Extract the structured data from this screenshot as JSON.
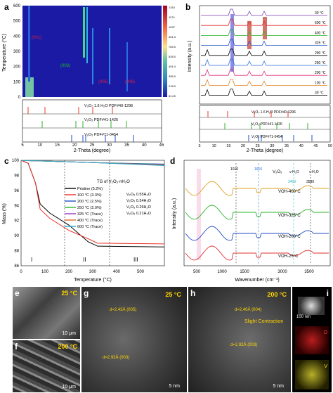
{
  "panel_a": {
    "label": "a",
    "ylabel": "Temperature (°C)",
    "xlabel": "2-Theta (degree)",
    "yticks": [
      "0",
      "100",
      "200",
      "300",
      "400",
      "500",
      "600"
    ],
    "xticks": [
      "5",
      "10",
      "15",
      "20",
      "25",
      "30",
      "35",
      "40",
      "45"
    ],
    "colorbar_ticks": [
      "1310",
      "1174",
      "1037",
      "901.0",
      "764.0",
      "628.0",
      "491.0",
      "355.0",
      "218.0",
      "81.00"
    ],
    "peaks": [
      "(001)",
      "(003)",
      "(005)",
      "(006)"
    ],
    "ref_labels": [
      "V₃O₇·1.6 H₂O PDF#40-1296",
      "V₂O₅ PDF#41-1426",
      "V₂O₅ PDF#71-0454"
    ]
  },
  "panel_b": {
    "label": "b",
    "ylabel": "Intensity (a.u.)",
    "xlabel": "2-Theta (degree)",
    "xticks": [
      "5",
      "10",
      "15",
      "20",
      "25",
      "30",
      "35",
      "40",
      "45",
      "50"
    ],
    "temps": [
      "30 °C",
      "600 °C",
      "400 °C",
      "325 °C",
      "290 °C",
      "250 °C",
      "200 °C",
      "100 °C",
      "30 °C"
    ],
    "ref_labels": [
      "V₃O₇·1.6 H₂O PDF#40-1296",
      "V₂O₅ PDF#41-1426",
      "V₂O₅ PDF#71-0454"
    ]
  },
  "panel_c": {
    "label": "c",
    "ylabel": "Mass (%)",
    "xlabel": "Temperature (°C)",
    "yticks": [
      "86",
      "88",
      "90",
      "92",
      "94",
      "96",
      "98",
      "100"
    ],
    "xticks": [
      "0",
      "100",
      "200",
      "300",
      "400",
      "500"
    ],
    "legend_title": "TG of V₂O₅·nH₂O",
    "legend": [
      {
        "name": "Pristine (5.2%)",
        "color": "#000000"
      },
      {
        "name": "100 °C (3.3%)",
        "color": "#e8332a"
      },
      {
        "name": "200 °C (2.5%)",
        "color": "#1f4ec6"
      },
      {
        "name": "250 °C (2.0%)",
        "color": "#2bb32b"
      },
      {
        "name": "325 °C (Trace)",
        "color": "#9b2fc8"
      },
      {
        "name": "400 °C (Trace)",
        "color": "#e06b22"
      },
      {
        "name": "600 °C (Trace)",
        "color": "#20a9c9"
      }
    ],
    "formulas": [
      "V₂O₅ 0.55H₂O",
      "V₂O₅ 0.34H₂O",
      "V₂O₅ 0.26H₂O",
      "V₂O₅ 0.21H₂O"
    ],
    "regions": [
      "I",
      "II",
      "III"
    ]
  },
  "panel_d": {
    "label": "d",
    "ylabel": "Intensity (a.u.)",
    "xlabel": "Wavenumber (cm⁻¹)",
    "xticks": [
      "500",
      "1000",
      "1500",
      "3000",
      "3500"
    ],
    "series": [
      "VOH-400°C",
      "VOH-325°C",
      "VOH-200°C",
      "VOH-25°C"
    ],
    "annotations": [
      "1010",
      "1610",
      "3400",
      "3580",
      "V₂O₅",
      "ν-H₂O",
      "ν-H₂O"
    ]
  },
  "panel_e": {
    "label": "e",
    "temp": "25 °C",
    "scale": "10 μm"
  },
  "panel_f": {
    "label": "f",
    "temp": "200 °C",
    "scale": "10 μm"
  },
  "panel_g": {
    "label": "g",
    "temp": "25 °C",
    "d1": "d=2.43Å (005)",
    "d2": "d=2.93Å (003)",
    "scale": "5 nm"
  },
  "panel_h": {
    "label": "h",
    "temp": "200 °C",
    "d1": "d=2.40Å (004)",
    "d2": "d=2.92Å (003)",
    "note": "Slight Contraction",
    "scale": "5 nm"
  },
  "panel_i": {
    "label": "i",
    "scale": "100 nm",
    "elements": [
      "O",
      "V"
    ]
  }
}
